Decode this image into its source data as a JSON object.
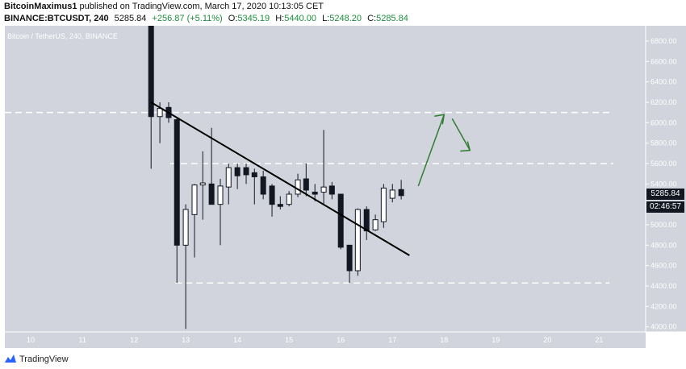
{
  "header": {
    "author": "BitcoinMaximus1",
    "published_text": " published on TradingView.com, March 17, 2020 10:13:05 CET",
    "symbol": "BINANCE:BTCUSDT, 240",
    "last": "5285.84",
    "change": "+256.87 (+5.11%)",
    "o_label": "O:",
    "o_val": "5345.19",
    "h_label": "H:",
    "h_val": "5440.00",
    "l_label": "L:",
    "l_val": "5248.20",
    "c_label": "C:",
    "c_val": "5285.84"
  },
  "chart_title": "Bitcoin / TetherUS, 240, BINANCE",
  "price_axis_ticks": [
    "6800.00",
    "6600.00",
    "6400.00",
    "6200.00",
    "6000.00",
    "5800.00",
    "5600.00",
    "5400.00",
    "5200.00",
    "5000.00",
    "4800.00",
    "4600.00",
    "4400.00",
    "4200.00",
    "4000.00"
  ],
  "time_axis_ticks": [
    "10",
    "11",
    "12",
    "13",
    "14",
    "15",
    "16",
    "17",
    "18",
    "19",
    "20",
    "21"
  ],
  "price_tag": "5285.84",
  "countdown_tag": "02:46:57",
  "footer": {
    "brand": "TradingView"
  },
  "colors": {
    "background": "#d1d4dc",
    "dashed": "#ffffff",
    "arrow": "#2e7d32",
    "trendline": "#000000"
  },
  "chart_data": {
    "type": "candlestick",
    "ylim": [
      3950,
      6950
    ],
    "candles": [
      {
        "t": 12.33,
        "o": 6950,
        "h": 6950,
        "c": 6060,
        "l": 5550
      },
      {
        "t": 12.5,
        "o": 6060,
        "h": 6200,
        "c": 6140,
        "l": 5800
      },
      {
        "t": 12.67,
        "o": 6150,
        "h": 6200,
        "c": 6050,
        "l": 6000
      },
      {
        "t": 12.83,
        "o": 6030,
        "h": 6050,
        "c": 4800,
        "l": 4430
      },
      {
        "t": 13.0,
        "o": 4800,
        "h": 5200,
        "c": 5150,
        "l": 3980
      },
      {
        "t": 13.17,
        "o": 5100,
        "h": 5400,
        "c": 5390,
        "l": 4680
      },
      {
        "t": 13.33,
        "o": 5390,
        "h": 5720,
        "c": 5410,
        "l": 5050
      },
      {
        "t": 13.5,
        "o": 5400,
        "h": 5950,
        "c": 5200,
        "l": 5200
      },
      {
        "t": 13.67,
        "o": 5200,
        "h": 5450,
        "c": 5380,
        "l": 4800
      },
      {
        "t": 13.83,
        "o": 5370,
        "h": 5600,
        "c": 5560,
        "l": 5200
      },
      {
        "t": 14.0,
        "o": 5560,
        "h": 5600,
        "c": 5480,
        "l": 5350
      },
      {
        "t": 14.17,
        "o": 5560,
        "h": 5600,
        "c": 5490,
        "l": 5400
      },
      {
        "t": 14.33,
        "o": 5510,
        "h": 5550,
        "c": 5470,
        "l": 5200
      },
      {
        "t": 14.5,
        "o": 5470,
        "h": 5530,
        "c": 5300,
        "l": 5250
      },
      {
        "t": 14.67,
        "o": 5380,
        "h": 5400,
        "c": 5200,
        "l": 5080
      },
      {
        "t": 14.83,
        "o": 5200,
        "h": 5280,
        "c": 5180,
        "l": 5150
      },
      {
        "t": 15.0,
        "o": 5200,
        "h": 5330,
        "c": 5300,
        "l": 5180
      },
      {
        "t": 15.17,
        "o": 5300,
        "h": 5500,
        "c": 5440,
        "l": 5270
      },
      {
        "t": 15.33,
        "o": 5450,
        "h": 5600,
        "c": 5340,
        "l": 5280
      },
      {
        "t": 15.5,
        "o": 5320,
        "h": 5400,
        "c": 5300,
        "l": 5230
      },
      {
        "t": 15.67,
        "o": 5320,
        "h": 5930,
        "c": 5370,
        "l": 5200
      },
      {
        "t": 15.83,
        "o": 5380,
        "h": 5420,
        "c": 5300,
        "l": 5250
      },
      {
        "t": 16.0,
        "o": 5300,
        "h": 5300,
        "c": 4780,
        "l": 4760
      },
      {
        "t": 16.17,
        "o": 4800,
        "h": 4800,
        "c": 4550,
        "l": 4430
      },
      {
        "t": 16.33,
        "o": 4550,
        "h": 5160,
        "c": 5150,
        "l": 4500
      },
      {
        "t": 16.5,
        "o": 5150,
        "h": 5180,
        "c": 4940,
        "l": 4850
      },
      {
        "t": 16.67,
        "o": 4950,
        "h": 5100,
        "c": 5050,
        "l": 4940
      },
      {
        "t": 16.83,
        "o": 5030,
        "h": 5400,
        "c": 5360,
        "l": 4970
      },
      {
        "t": 17.0,
        "o": 5260,
        "h": 5400,
        "c": 5340,
        "l": 5220
      },
      {
        "t": 17.17,
        "o": 5345.19,
        "h": 5440,
        "c": 5285.84,
        "l": 5248.2
      }
    ],
    "resistance_lines": [
      6100,
      5600
    ],
    "support_line": 4430,
    "trendline": [
      [
        12.33,
        6200
      ],
      [
        17.33,
        4700
      ]
    ],
    "projection": [
      [
        17.5,
        5380
      ],
      [
        18.0,
        6080
      ],
      [
        18.5,
        5730
      ]
    ]
  }
}
